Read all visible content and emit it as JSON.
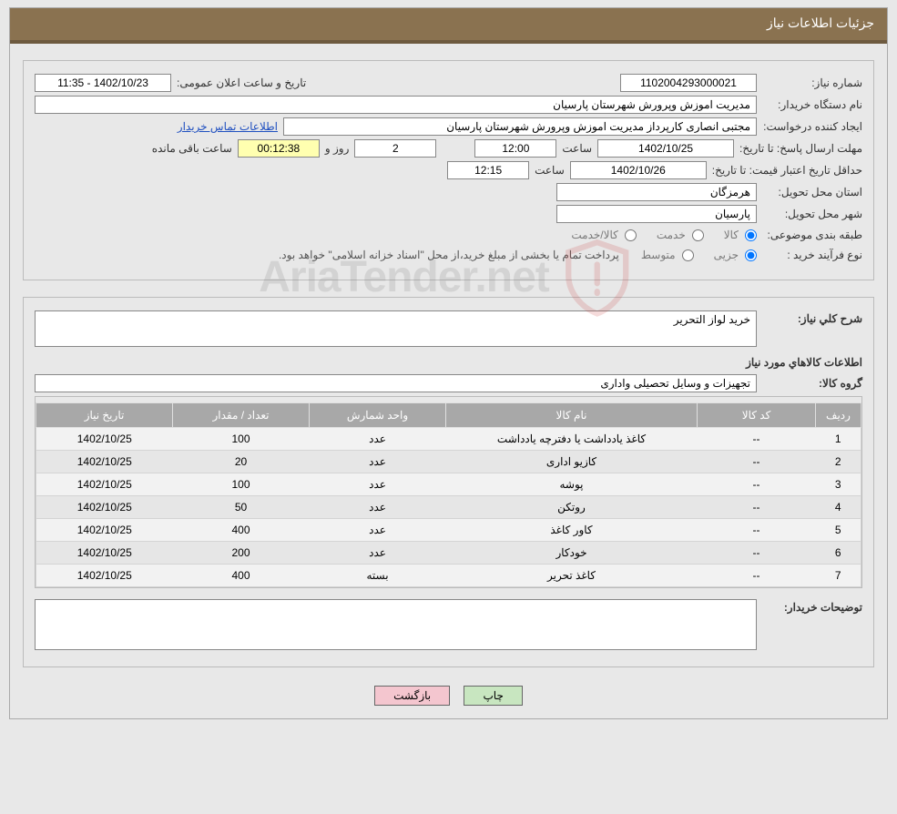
{
  "header": {
    "title": "جزئیات اطلاعات نیاز"
  },
  "colors": {
    "header_bg": "#8a7250",
    "header_border": "#6d5a3f",
    "page_bg": "#e8e8e8",
    "th_bg": "#a8a8a8",
    "btn_print": "#c8e6c0",
    "btn_back": "#f4c6cf",
    "countdown_bg": "#ffffb0",
    "link": "#2050c0"
  },
  "labels": {
    "need_no": "شماره نیاز:",
    "announce_dt": "تاریخ و ساعت اعلان عمومی:",
    "buyer_org": "نام دستگاه خریدار:",
    "requester": "ایجاد کننده درخواست:",
    "contact_link": "اطلاعات تماس خریدار",
    "reply_deadline": "مهلت ارسال پاسخ: تا تاریخ:",
    "hour": "ساعت",
    "day_and": "روز و",
    "hours_left": "ساعت باقی مانده",
    "min_valid": "حداقل تاریخ اعتبار قیمت: تا تاریخ:",
    "deliv_prov": "استان محل تحویل:",
    "deliv_city": "شهر محل تحویل:",
    "subject_cat": "طبقه بندی موضوعی:",
    "purchase_type": "نوع فرآيند خريد :",
    "treasury_note": "پرداخت تمام يا بخشی از مبلغ خريد،از محل \"اسناد خزانه اسلامی\" خواهد بود.",
    "need_desc": "شرح کلي نياز:",
    "goods_info": "اطلاعات کالاهاي مورد نياز",
    "goods_group": "گروه کالا:",
    "buyer_notes": "توضيحات خريدار:"
  },
  "fields": {
    "need_no": "1102004293000021",
    "announce_dt": "1402/10/23 - 11:35",
    "buyer_org": "مدیریت اموزش وپرورش شهرستان پارسیان",
    "requester": "مجتبی انصاری کارپرداز مدیریت اموزش وپرورش شهرستان پارسیان",
    "reply_date": "1402/10/25",
    "reply_time": "12:00",
    "days_left": "2",
    "countdown": "00:12:38",
    "valid_date": "1402/10/26",
    "valid_time": "12:15",
    "province": "هرمزگان",
    "city": "پارسیان",
    "need_desc": "خرید لواز التحریر",
    "goods_group": "تجهیزات و وسایل تحصیلی واداری",
    "buyer_notes": ""
  },
  "radios": {
    "subject": [
      {
        "label": "کالا",
        "checked": true
      },
      {
        "label": "خدمت",
        "checked": false
      },
      {
        "label": "کالا/خدمت",
        "checked": false
      }
    ],
    "purchase": [
      {
        "label": "جزيی",
        "checked": true
      },
      {
        "label": "متوسط",
        "checked": false
      }
    ]
  },
  "table": {
    "columns": [
      "ردیف",
      "کد کالا",
      "نام کالا",
      "واحد شمارش",
      "تعداد / مقدار",
      "تاریخ نیاز"
    ],
    "rows": [
      [
        "1",
        "--",
        "کاغذ یادداشت یا دفترچه یادداشت",
        "عدد",
        "100",
        "1402/10/25"
      ],
      [
        "2",
        "--",
        "کازیو اداری",
        "عدد",
        "20",
        "1402/10/25"
      ],
      [
        "3",
        "--",
        "پوشه",
        "عدد",
        "100",
        "1402/10/25"
      ],
      [
        "4",
        "--",
        "روتکن",
        "عدد",
        "50",
        "1402/10/25"
      ],
      [
        "5",
        "--",
        "کاور کاغذ",
        "عدد",
        "400",
        "1402/10/25"
      ],
      [
        "6",
        "--",
        "خودکار",
        "عدد",
        "200",
        "1402/10/25"
      ],
      [
        "7",
        "--",
        "کاغذ تحریر",
        "بسته",
        "400",
        "1402/10/25"
      ]
    ]
  },
  "buttons": {
    "print": "چاپ",
    "back": "بازگشت"
  },
  "watermark": {
    "text": "AriaTender.net"
  }
}
